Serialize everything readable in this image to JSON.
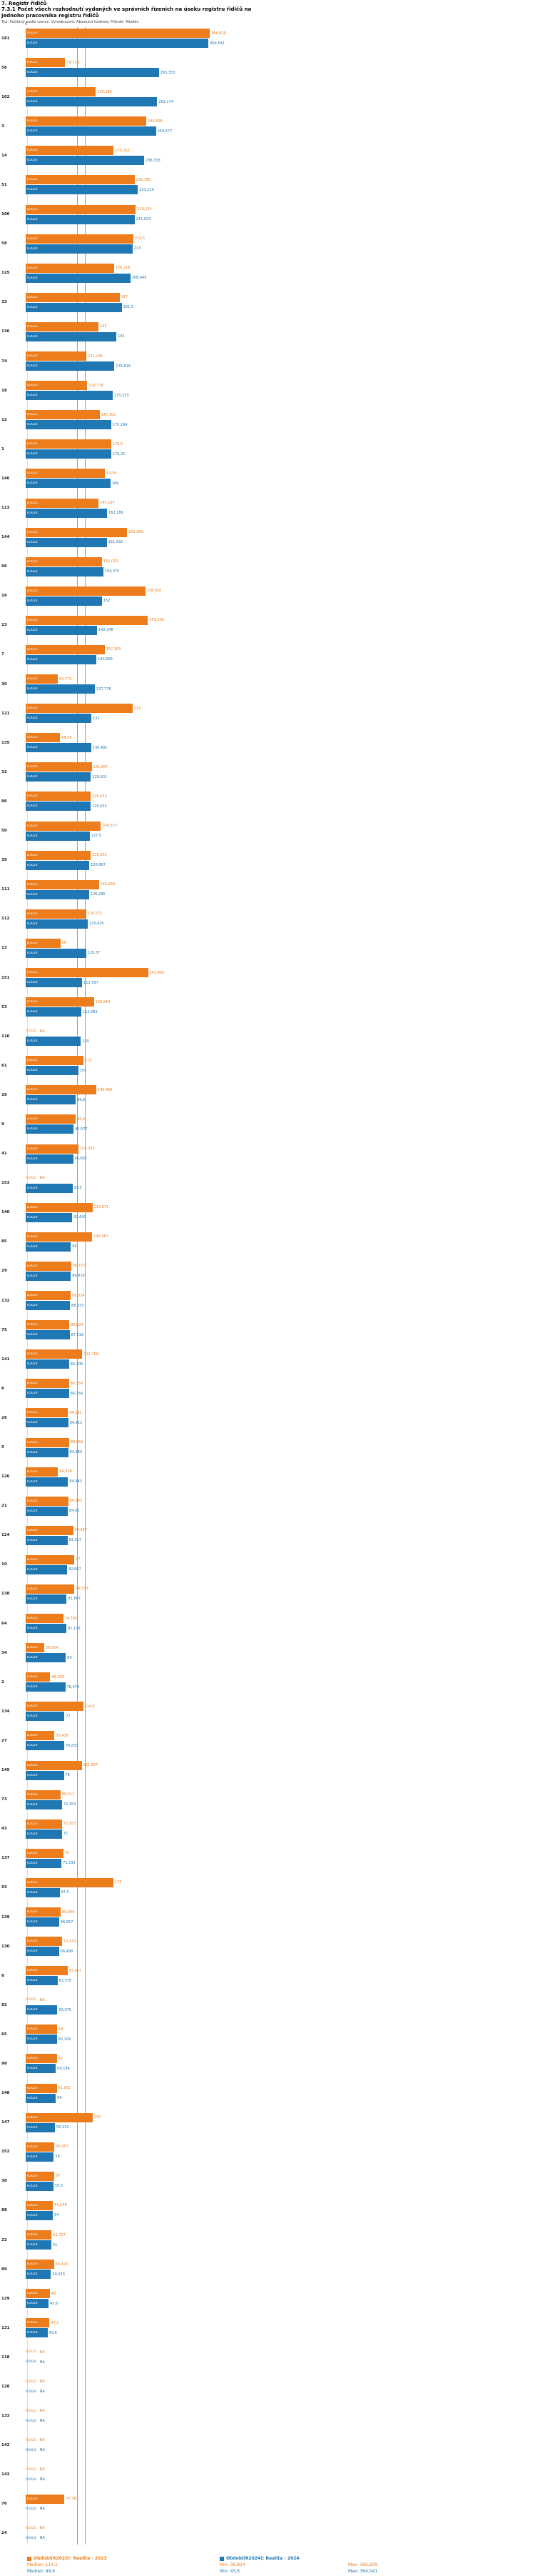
{
  "header": {
    "title": "7. Registr řidičů",
    "meta": "Typ: Počítaný podle vzorce. Vyhodnocení: Absolutní hodnoty. Průměr: Medián"
  },
  "na_label": "NA",
  "chart_data": {
    "type": "bar",
    "orientation": "horizontal",
    "title": "7.3.1 Počet všech rozhodnutí vydaných ve správních řízeních na úseku registru řidičů na jednoho pracovníka registru řidičů",
    "sort": "descending by 2024 value, NA last",
    "axis": {
      "origin_label": "0",
      "xmax": 366.829
    },
    "series_labels": {
      "s2023": "R2023",
      "s2024": "R2024"
    },
    "colors": {
      "s2023": "#ED7D1C",
      "s2024": "#1F77B4"
    },
    "median_lines": {
      "s2023": 114.5,
      "s2024": 99.6
    },
    "stats": {
      "s2023": {
        "median": 114.5,
        "min": 36.824,
        "max": 366.829
      },
      "s2024": {
        "median": 99.6,
        "min": 43.6,
        "max": 364.541
      }
    },
    "groups": [
      {
        "id": "181",
        "v2023": 366.829,
        "v2024": 364.541
      },
      {
        "id": "56",
        "v2023": 78.714,
        "v2024": 265.333
      },
      {
        "id": "102",
        "v2023": 139.286,
        "v2024": 262.174
      },
      {
        "id": "3",
        "v2023": 240.308,
        "v2024": 259.677
      },
      {
        "id": "14",
        "v2023": 175.152,
        "v2024": 236.333
      },
      {
        "id": "51",
        "v2023": 216.786,
        "v2024": 223.214
      },
      {
        "id": "106",
        "v2023": 219.154,
        "v2024": 216.923
      },
      {
        "id": "58",
        "v2023": 214.5,
        "v2024": 213
      },
      {
        "id": "125",
        "v2023": 176.218,
        "v2024": 208.649
      },
      {
        "id": "33",
        "v2023": 187,
        "v2024": 191.5
      },
      {
        "id": "136",
        "v2023": 145,
        "v2024": 181
      },
      {
        "id": "74",
        "v2023": 121.136,
        "v2024": 176.818
      },
      {
        "id": "18",
        "v2023": 122.778,
        "v2024": 173.333
      },
      {
        "id": "12",
        "v2023": 147.302,
        "v2024": 170.294
      },
      {
        "id": "1",
        "v2023": 170.5,
        "v2024": 170.25
      },
      {
        "id": "146",
        "v2023": 157.6,
        "v2024": 169
      },
      {
        "id": "113",
        "v2023": 145.167,
        "v2024": 162.186
      },
      {
        "id": "144",
        "v2023": 202.069,
        "v2024": 161.332
      },
      {
        "id": "96",
        "v2023": 152.013,
        "v2024": 154.375
      },
      {
        "id": "16",
        "v2023": 238.435,
        "v2024": 152
      },
      {
        "id": "23",
        "v2023": 243.596,
        "v2024": 142.248
      },
      {
        "id": "7",
        "v2023": 157.363,
        "v2024": 140.909
      },
      {
        "id": "30",
        "v2023": 63.773,
        "v2024": 137.776
      },
      {
        "id": "121",
        "v2023": 213,
        "v2024": 131
      },
      {
        "id": "135",
        "v2023": 68.59,
        "v2024": 130.481
      },
      {
        "id": "32",
        "v2023": 131.667,
        "v2024": 129.931
      },
      {
        "id": "86",
        "v2023": 129.333,
        "v2024": 129.333
      },
      {
        "id": "50",
        "v2023": 149.333,
        "v2024": 127.5
      },
      {
        "id": "39",
        "v2023": 129.362,
        "v2024": 126.667
      },
      {
        "id": "111",
        "v2023": 145.833,
        "v2024": 126.286
      },
      {
        "id": "112",
        "v2023": 120.571,
        "v2024": 123.429
      },
      {
        "id": "13",
        "v2023": 69,
        "v2024": 120.37
      },
      {
        "id": "151",
        "v2023": 243.862,
        "v2024": 112.397
      },
      {
        "id": "53",
        "v2023": 135.944,
        "v2024": 111.081
      },
      {
        "id": "110",
        "v2023": null,
        "v2024": 110
      },
      {
        "id": "61",
        "v2023": 115,
        "v2024": 105
      },
      {
        "id": "19",
        "v2023": 140.465,
        "v2024": 99.6
      },
      {
        "id": "9",
        "v2023": 99.6,
        "v2024": 95.577
      },
      {
        "id": "41",
        "v2023": 105.333,
        "v2024": 94.667
      },
      {
        "id": "153",
        "v2023": null,
        "v2024": 93.5
      },
      {
        "id": "140",
        "v2023": 132.871,
        "v2024": 92.642
      },
      {
        "id": "85",
        "v2023": 132.467,
        "v2024": 90
      },
      {
        "id": "29",
        "v2023": 90.727,
        "v2024": 89.819
      },
      {
        "id": "132",
        "v2023": 89.524,
        "v2024": 88.333
      },
      {
        "id": "75",
        "v2023": 86.824,
        "v2024": 87.619
      },
      {
        "id": "141",
        "v2023": 112.709,
        "v2024": 86.206
      },
      {
        "id": "6",
        "v2023": 86.154,
        "v2024": 86.154
      },
      {
        "id": "26",
        "v2023": 84.233,
        "v2024": 84.912
      },
      {
        "id": "5",
        "v2023": 86.582,
        "v2024": 84.583
      },
      {
        "id": "126",
        "v2023": 64.536,
        "v2024": 84.483
      },
      {
        "id": "21",
        "v2023": 84.562,
        "v2024": 84.01
      },
      {
        "id": "124",
        "v2023": 94.557,
        "v2024": 83.317
      },
      {
        "id": "10",
        "v2023": 97,
        "v2024": 82.667
      },
      {
        "id": "138",
        "v2023": 96.333,
        "v2024": 81.667
      },
      {
        "id": "64",
        "v2023": 74.795,
        "v2024": 81.176
      },
      {
        "id": "34",
        "v2023": 36.824,
        "v2024": 80
      },
      {
        "id": "2",
        "v2023": 48.309,
        "v2024": 78.974
      },
      {
        "id": "134",
        "v2023": 114.5,
        "v2024": 77
      },
      {
        "id": "27",
        "v2023": 57.436,
        "v2024": 76.833
      },
      {
        "id": "145",
        "v2023": 111.667,
        "v2024": 76
      },
      {
        "id": "73",
        "v2023": 69.412,
        "v2024": 72.353
      },
      {
        "id": "43",
        "v2023": 72.353,
        "v2024": 72
      },
      {
        "id": "137",
        "v2023": 75,
        "v2024": 71.333
      },
      {
        "id": "93",
        "v2023": 175,
        "v2024": 67.5
      },
      {
        "id": "139",
        "v2023": 69.499,
        "v2024": 66.667
      },
      {
        "id": "130",
        "v2023": 72.273,
        "v2024": 66.498
      },
      {
        "id": "8",
        "v2023": 83.667,
        "v2024": 63.375
      },
      {
        "id": "82",
        "v2023": null,
        "v2024": 63.075
      },
      {
        "id": "65",
        "v2023": 63,
        "v2024": 62.109
      },
      {
        "id": "98",
        "v2023": 62,
        "v2024": 60.186
      },
      {
        "id": "148",
        "v2023": 61.952,
        "v2024": 60
      },
      {
        "id": "147",
        "v2023": 133,
        "v2024": 58.333
      },
      {
        "id": "152",
        "v2023": 56.957,
        "v2024": 56
      },
      {
        "id": "38",
        "v2023": 57,
        "v2024": 55.5
      },
      {
        "id": "88",
        "v2023": 54.246,
        "v2024": 54
      },
      {
        "id": "22",
        "v2023": 51.707,
        "v2024": 51
      },
      {
        "id": "89",
        "v2023": 56.323,
        "v2024": 50.323
      },
      {
        "id": "129",
        "v2023": 48,
        "v2024": 45.6
      },
      {
        "id": "131",
        "v2023": 47.2,
        "v2024": 43.6
      },
      {
        "id": "118",
        "v2023": null,
        "v2024": null
      },
      {
        "id": "128",
        "v2023": null,
        "v2024": null
      },
      {
        "id": "133",
        "v2023": null,
        "v2024": null
      },
      {
        "id": "142",
        "v2023": null,
        "v2024": null
      },
      {
        "id": "143",
        "v2023": null,
        "v2024": null
      },
      {
        "id": "76",
        "v2023": 77.361,
        "v2024": null
      },
      {
        "id": "24",
        "v2023": null,
        "v2024": null
      }
    ]
  },
  "legend": {
    "s2023": "Období(R2023): Realita - 2023",
    "s2024": "Období(R2024): Realita - 2024",
    "stats_2023": {
      "median": "Medián: 114,5",
      "min": "Min: 36,824",
      "max": "Max: 366,829"
    },
    "stats_2024": {
      "median": "Medián: 99,6",
      "min": "Min: 43,6",
      "max": "Max: 364,541"
    }
  }
}
